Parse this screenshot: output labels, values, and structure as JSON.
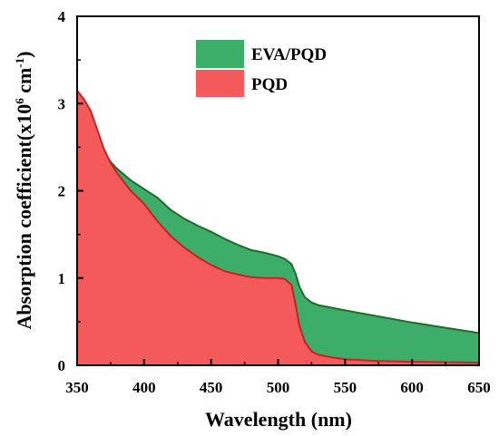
{
  "chart_data": {
    "type": "area",
    "xlabel": "Wavelength (nm)",
    "ylabel_main": "Absorption coefficient(x10",
    "ylabel_sup1": "6",
    "ylabel_mid": " cm",
    "ylabel_sup2": "-1",
    "ylabel_end": ")",
    "xlim": [
      350,
      650
    ],
    "ylim": [
      0,
      4
    ],
    "x_ticks": [
      "350",
      "400",
      "450",
      "500",
      "550",
      "600",
      "650"
    ],
    "y_ticks": [
      "0",
      "1",
      "2",
      "3",
      "4"
    ],
    "legend_position": "top-center",
    "series": [
      {
        "name": "EVA/PQD",
        "fill": "#3dae69",
        "stroke": "#1e6b2a",
        "x": [
          350,
          355,
          360,
          365,
          370,
          375,
          380,
          390,
          400,
          410,
          420,
          430,
          440,
          450,
          460,
          470,
          480,
          490,
          500,
          505,
          510,
          513,
          516,
          520,
          525,
          530,
          540,
          550,
          575,
          600,
          625,
          650
        ],
        "y": [
          2.85,
          2.8,
          2.72,
          2.6,
          2.45,
          2.33,
          2.25,
          2.12,
          2.02,
          1.92,
          1.78,
          1.68,
          1.6,
          1.53,
          1.45,
          1.38,
          1.32,
          1.29,
          1.25,
          1.22,
          1.16,
          1.05,
          0.9,
          0.78,
          0.72,
          0.69,
          0.66,
          0.63,
          0.56,
          0.49,
          0.43,
          0.37
        ]
      },
      {
        "name": "PQD",
        "fill": "#f45a5a",
        "stroke": "#cc1f1f",
        "x": [
          350,
          355,
          360,
          365,
          370,
          375,
          380,
          390,
          400,
          410,
          420,
          430,
          440,
          450,
          460,
          470,
          480,
          490,
          500,
          505,
          510,
          513,
          516,
          520,
          525,
          530,
          540,
          550,
          575,
          600,
          625,
          650
        ],
        "y": [
          3.15,
          3.05,
          2.92,
          2.7,
          2.48,
          2.32,
          2.2,
          2.0,
          1.85,
          1.65,
          1.48,
          1.35,
          1.24,
          1.15,
          1.08,
          1.04,
          1.01,
          1.0,
          1.0,
          0.99,
          0.92,
          0.7,
          0.45,
          0.27,
          0.16,
          0.12,
          0.09,
          0.07,
          0.05,
          0.04,
          0.035,
          0.03
        ]
      }
    ]
  }
}
